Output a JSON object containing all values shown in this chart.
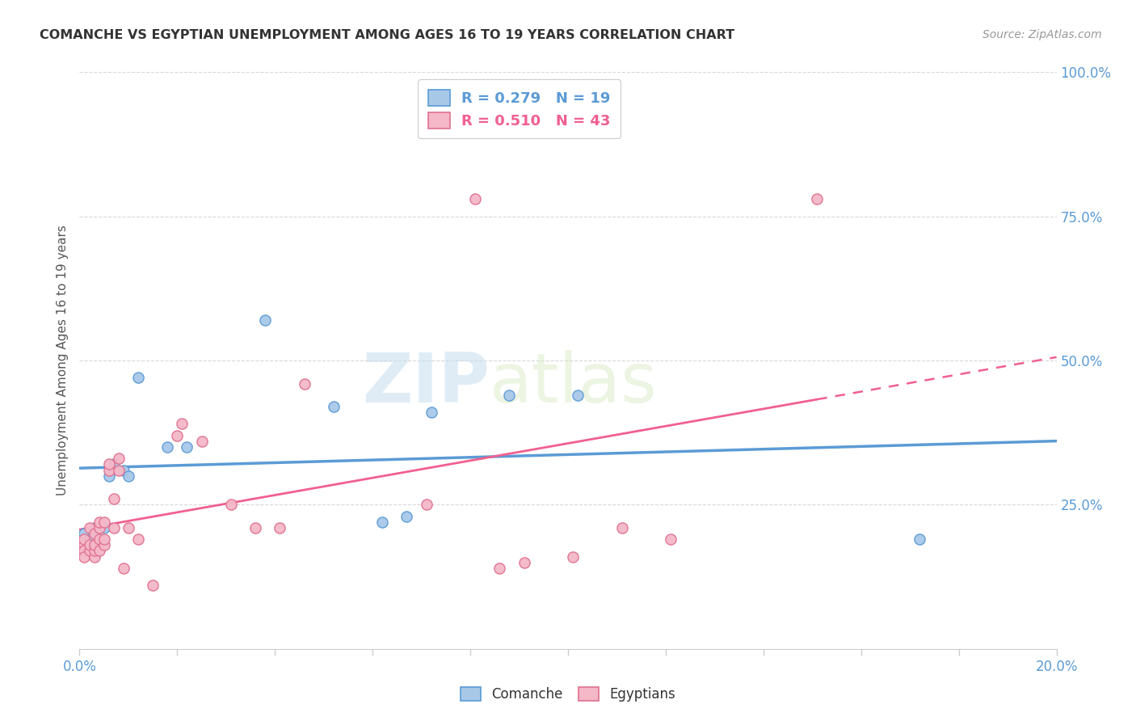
{
  "title": "COMANCHE VS EGYPTIAN UNEMPLOYMENT AMONG AGES 16 TO 19 YEARS CORRELATION CHART",
  "source": "Source: ZipAtlas.com",
  "ylabel": "Unemployment Among Ages 16 to 19 years",
  "xlim": [
    0.0,
    0.2
  ],
  "ylim": [
    0.0,
    1.0
  ],
  "xtick_vals": [
    0.0,
    0.02,
    0.04,
    0.06,
    0.08,
    0.1,
    0.12,
    0.14,
    0.16,
    0.18,
    0.2
  ],
  "ytick_right_vals": [
    0.25,
    0.5,
    0.75,
    1.0
  ],
  "comanche_color": "#a8c8e8",
  "egyptian_color": "#f4b8c8",
  "comanche_edge": "#5b9bd5",
  "egyptian_edge": "#e07090",
  "comanche_R": 0.279,
  "comanche_N": 19,
  "egyptian_R": 0.51,
  "egyptian_N": 43,
  "comanche_line_color": "#5b9bd5",
  "egyptian_line_color": "#f06090",
  "comanche_points": [
    [
      0.001,
      0.2
    ],
    [
      0.002,
      0.19
    ],
    [
      0.003,
      0.21
    ],
    [
      0.005,
      0.21
    ],
    [
      0.006,
      0.3
    ],
    [
      0.007,
      0.32
    ],
    [
      0.009,
      0.31
    ],
    [
      0.01,
      0.3
    ],
    [
      0.012,
      0.47
    ],
    [
      0.018,
      0.35
    ],
    [
      0.022,
      0.35
    ],
    [
      0.038,
      0.57
    ],
    [
      0.052,
      0.42
    ],
    [
      0.062,
      0.22
    ],
    [
      0.067,
      0.23
    ],
    [
      0.072,
      0.41
    ],
    [
      0.088,
      0.44
    ],
    [
      0.102,
      0.44
    ],
    [
      0.172,
      0.19
    ]
  ],
  "egyptian_points": [
    [
      0.001,
      0.18
    ],
    [
      0.001,
      0.17
    ],
    [
      0.001,
      0.16
    ],
    [
      0.001,
      0.19
    ],
    [
      0.002,
      0.17
    ],
    [
      0.002,
      0.18
    ],
    [
      0.002,
      0.21
    ],
    [
      0.003,
      0.16
    ],
    [
      0.003,
      0.17
    ],
    [
      0.003,
      0.18
    ],
    [
      0.003,
      0.2
    ],
    [
      0.004,
      0.17
    ],
    [
      0.004,
      0.19
    ],
    [
      0.004,
      0.21
    ],
    [
      0.004,
      0.22
    ],
    [
      0.005,
      0.18
    ],
    [
      0.005,
      0.19
    ],
    [
      0.005,
      0.22
    ],
    [
      0.006,
      0.31
    ],
    [
      0.006,
      0.32
    ],
    [
      0.007,
      0.21
    ],
    [
      0.007,
      0.26
    ],
    [
      0.008,
      0.31
    ],
    [
      0.008,
      0.33
    ],
    [
      0.009,
      0.14
    ],
    [
      0.01,
      0.21
    ],
    [
      0.012,
      0.19
    ],
    [
      0.015,
      0.11
    ],
    [
      0.02,
      0.37
    ],
    [
      0.021,
      0.39
    ],
    [
      0.025,
      0.36
    ],
    [
      0.031,
      0.25
    ],
    [
      0.036,
      0.21
    ],
    [
      0.041,
      0.21
    ],
    [
      0.046,
      0.46
    ],
    [
      0.071,
      0.25
    ],
    [
      0.081,
      0.78
    ],
    [
      0.086,
      0.14
    ],
    [
      0.091,
      0.15
    ],
    [
      0.101,
      0.16
    ],
    [
      0.111,
      0.21
    ],
    [
      0.121,
      0.19
    ],
    [
      0.151,
      0.78
    ]
  ],
  "watermark_zip": "ZIP",
  "watermark_atlas": "atlas",
  "background_color": "#ffffff",
  "grid_color": "#d8d8d8"
}
